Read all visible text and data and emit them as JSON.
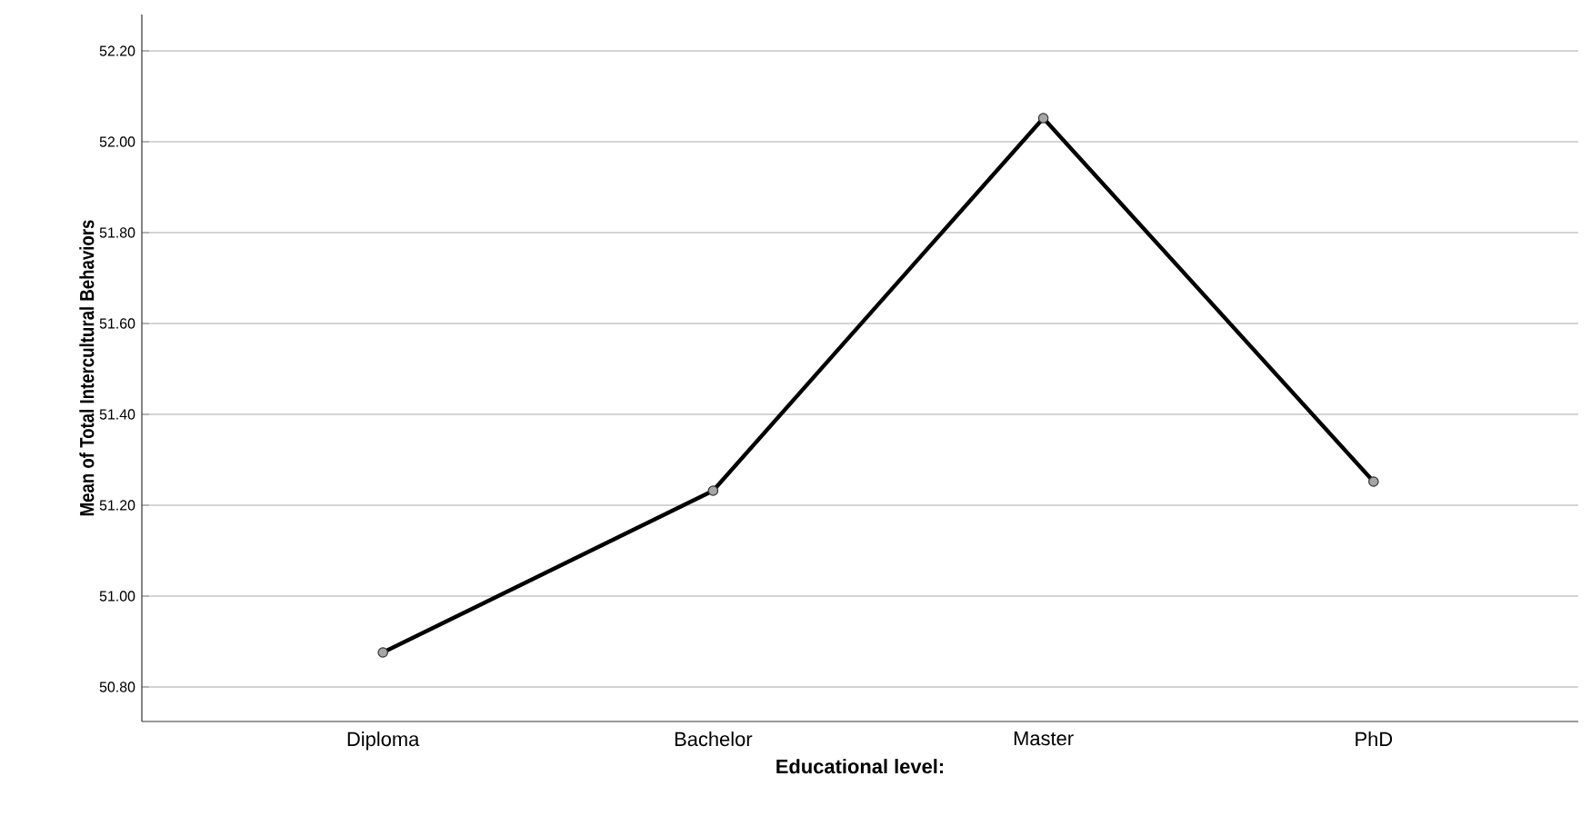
{
  "chart_data": {
    "type": "line",
    "xlabel": "Educational level:",
    "ylabel": "Mean of Total Intercultural Behaviors",
    "categories": [
      "Diploma",
      "Bachelor",
      "Master",
      "PhD"
    ],
    "series": [
      {
        "color": "#000000",
        "values": [
          50.876,
          51.232,
          52.052,
          51.252
        ]
      }
    ],
    "ylim": [
      50.724,
      52.28
    ],
    "yticks": [
      {
        "value": 50.8,
        "label": "50.80"
      },
      {
        "value": 51.0,
        "label": "51.00"
      },
      {
        "value": 51.2,
        "label": "51.20"
      },
      {
        "value": 51.4,
        "label": "51.40"
      },
      {
        "value": 51.6,
        "label": "51.60"
      },
      {
        "value": 51.8,
        "label": "51.80"
      },
      {
        "value": 52.0,
        "label": "52.00"
      },
      {
        "value": 52.2,
        "label": "52.20"
      }
    ],
    "grid": "y",
    "marker": "circle",
    "line_style": "solid"
  }
}
